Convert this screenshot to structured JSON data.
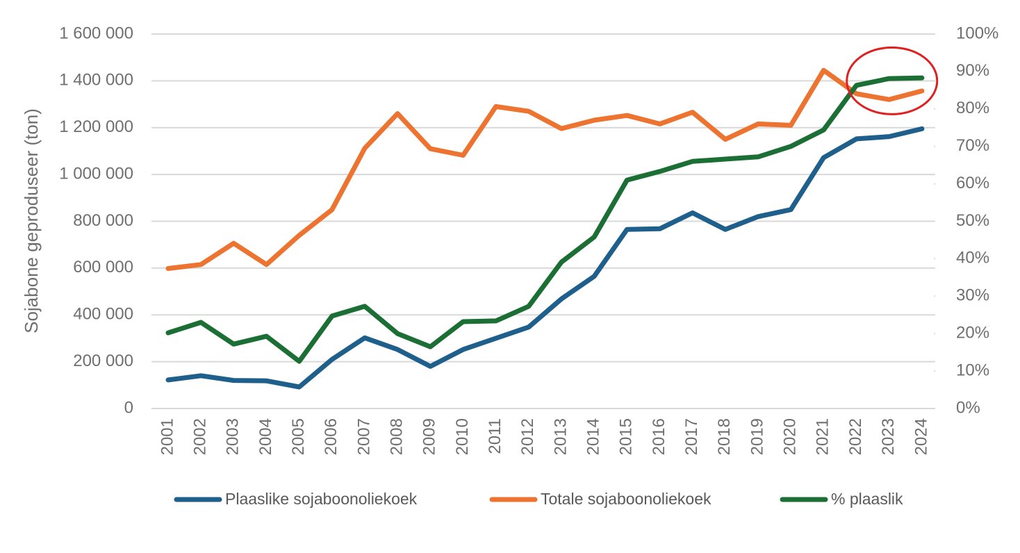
{
  "chart_data": {
    "type": "line",
    "title": "",
    "xlabel": "",
    "ylabel": "Sojabone geproduseer (ton)",
    "y2label": "",
    "ylim": [
      0,
      1600000
    ],
    "y2lim": [
      0,
      1
    ],
    "grid": true,
    "legend_position": "bottom",
    "y_ticks": [
      "0",
      "200 000",
      "400 000",
      "600 000",
      "800 000",
      "1 000 000",
      "1 200 000",
      "1 400 000",
      "1 600 000"
    ],
    "y_tick_values": [
      0,
      200000,
      400000,
      600000,
      800000,
      1000000,
      1200000,
      1400000,
      1600000
    ],
    "y2_ticks": [
      "0%",
      "10%",
      "20%",
      "30%",
      "40%",
      "50%",
      "60%",
      "70%",
      "80%",
      "90%",
      "100%"
    ],
    "y2_tick_values": [
      0,
      0.1,
      0.2,
      0.3,
      0.4,
      0.5,
      0.6,
      0.7,
      0.8,
      0.9,
      1.0
    ],
    "x": [
      "2001",
      "2002",
      "2003",
      "2004",
      "2005",
      "2006",
      "2007",
      "2008",
      "2009",
      "2010",
      "2011",
      "2012",
      "2013",
      "2014",
      "2015",
      "2016",
      "2017",
      "2018",
      "2019",
      "2020",
      "2021",
      "2022",
      "2023",
      "2024"
    ],
    "series": [
      {
        "name": "Plaaslike sojaboonoliekoek",
        "axis": "left",
        "color": "#1f5f8b",
        "values": [
          122000,
          140000,
          120000,
          118000,
          92000,
          210000,
          302000,
          252000,
          180000,
          252000,
          300000,
          348000,
          468000,
          565000,
          765000,
          768000,
          836000,
          765000,
          820000,
          850000,
          1072000,
          1152000,
          1162000,
          1195000
        ]
      },
      {
        "name": "Totale sojaboonoliekoek",
        "axis": "left",
        "color": "#ed7330",
        "values": [
          598000,
          615000,
          706000,
          615000,
          740000,
          850000,
          1112000,
          1260000,
          1110000,
          1082000,
          1290000,
          1270000,
          1196000,
          1232000,
          1252000,
          1216000,
          1266000,
          1150000,
          1216000,
          1210000,
          1445000,
          1345000,
          1320000,
          1357000
        ]
      },
      {
        "name": "% plaaslik",
        "axis": "right",
        "color": "#1b6f35",
        "values": [
          0.202,
          0.23,
          0.172,
          0.193,
          0.126,
          0.247,
          0.273,
          0.2,
          0.165,
          0.232,
          0.234,
          0.273,
          0.391,
          0.458,
          0.61,
          0.633,
          0.66,
          0.666,
          0.672,
          0.7,
          0.744,
          0.863,
          0.881,
          0.883
        ]
      }
    ],
    "annotations": [
      {
        "type": "ellipse",
        "color": "#e02020",
        "around_x": [
          "2022",
          "2024"
        ],
        "around_y2": [
          0.8,
          0.95
        ]
      }
    ]
  }
}
